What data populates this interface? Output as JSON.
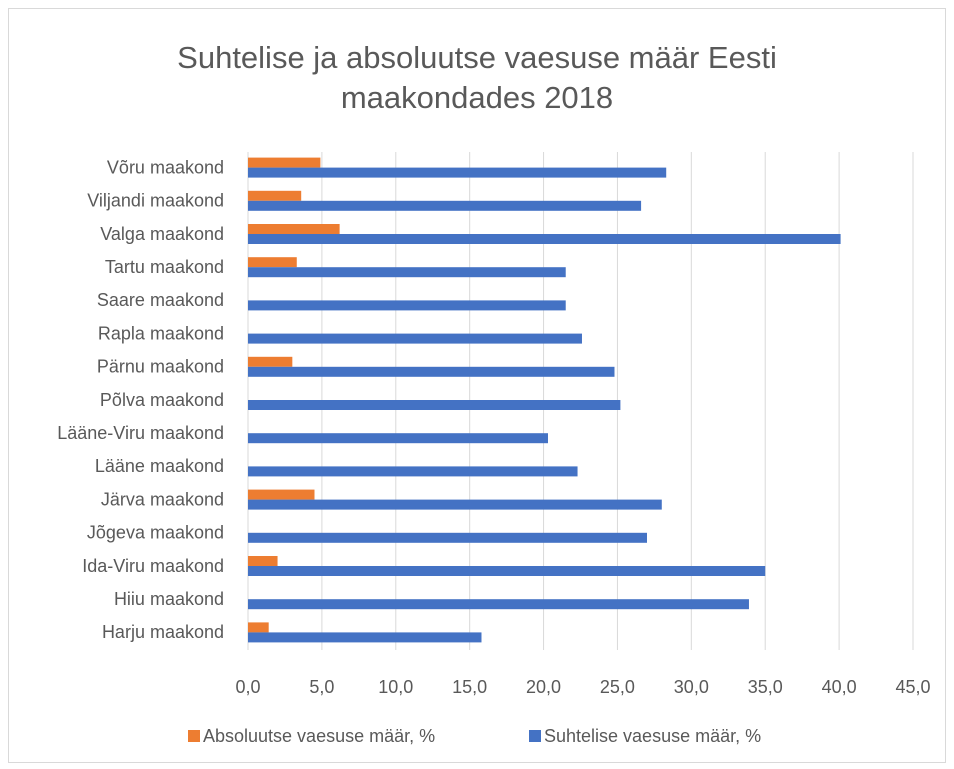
{
  "chart_data": {
    "type": "barh",
    "title": "Suhtelise ja absoluutse vaesuse määr Eesti maakondades 2018",
    "categories": [
      "Harju maakond",
      "Hiiu maakond",
      "Ida-Viru maakond",
      "Jõgeva maakond",
      "Järva maakond",
      "Lääne maakond",
      "Lääne-Viru maakond",
      "Põlva maakond",
      "Pärnu maakond",
      "Rapla maakond",
      "Saare maakond",
      "Tartu maakond",
      "Valga maakond",
      "Viljandi maakond",
      "Võru maakond"
    ],
    "series": [
      {
        "name": "Absoluutse vaesuse määr, %",
        "color": "#ed7d31",
        "values": [
          1.4,
          null,
          2.0,
          null,
          4.5,
          null,
          null,
          null,
          3.0,
          null,
          null,
          3.3,
          6.2,
          3.6,
          4.9
        ]
      },
      {
        "name": "Suhtelise vaesuse määr, %",
        "color": "#4472c4",
        "values": [
          15.8,
          33.9,
          35.0,
          27.0,
          28.0,
          22.3,
          20.3,
          25.2,
          24.8,
          22.6,
          21.5,
          21.5,
          40.1,
          26.6,
          28.3
        ]
      }
    ],
    "xlim": [
      0,
      45
    ],
    "xticks": [
      {
        "value": 0,
        "label": "0,0"
      },
      {
        "value": 5,
        "label": "5,0"
      },
      {
        "value": 10,
        "label": "10,0"
      },
      {
        "value": 15,
        "label": "15,0"
      },
      {
        "value": 20,
        "label": "20,0"
      },
      {
        "value": 25,
        "label": "25,0"
      },
      {
        "value": 30,
        "label": "30,0"
      },
      {
        "value": 35,
        "label": "35,0"
      },
      {
        "value": 40,
        "label": "40,0"
      },
      {
        "value": 45,
        "label": "45,0"
      }
    ],
    "grid": true,
    "legend": "bottom"
  }
}
